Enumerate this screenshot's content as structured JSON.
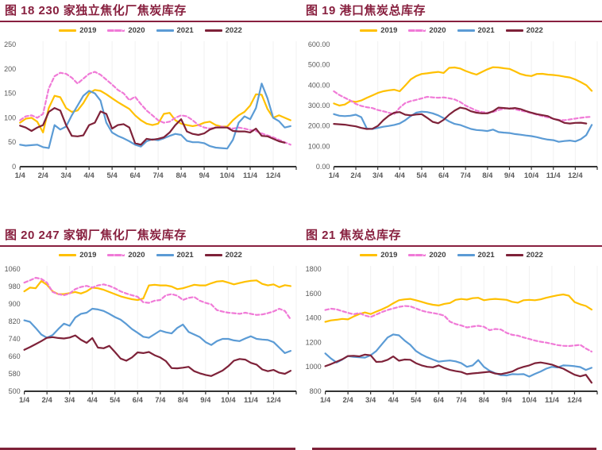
{
  "page": {
    "accent_color": "#88203F",
    "axis_color": "#333333",
    "tick_text_color": "#595959",
    "grid_color": "#F1F1F1",
    "series_colors": {
      "y2019": "#FFC000",
      "y2020": "#F07AD7",
      "y2021": "#5B9BD5",
      "y2022": "#7E2239"
    }
  },
  "chart_data": [
    {
      "id": "fig18",
      "title": "图 18 230 家独立焦化厂焦炭库存",
      "type": "line",
      "x_labels": [
        "1/4",
        "2/4",
        "3/4",
        "4/4",
        "5/4",
        "6/4",
        "7/4",
        "8/4",
        "9/4",
        "10/4",
        "11/4",
        "12/4"
      ],
      "points_per_month": 4,
      "ylim": [
        0,
        250
      ],
      "ytick_step": 50,
      "y_decimals": 0,
      "legend_position": "top",
      "grid": "vertical-faint",
      "series": [
        {
          "name": "2019",
          "color": "#FFC000",
          "dash": false,
          "values": [
            90,
            98,
            100,
            92,
            70,
            120,
            145,
            142,
            120,
            112,
            115,
            130,
            150,
            157,
            155,
            148,
            140,
            132,
            125,
            118,
            105,
            95,
            88,
            85,
            88,
            108,
            110,
            95,
            88,
            85,
            83,
            85,
            90,
            92,
            85,
            82,
            82,
            95,
            105,
            112,
            125,
            148,
            147,
            118,
            100,
            105,
            100,
            95
          ]
        },
        {
          "name": "2020",
          "color": "#F07AD7",
          "dash": true,
          "values": [
            95,
            103,
            105,
            100,
            108,
            160,
            185,
            192,
            190,
            182,
            170,
            180,
            190,
            194,
            188,
            178,
            168,
            157,
            150,
            136,
            143,
            128,
            115,
            105,
            95,
            90,
            92,
            100,
            105,
            103,
            95,
            85,
            80,
            78,
            80,
            82,
            80,
            78,
            80,
            78,
            75,
            73,
            68,
            64,
            60,
            55,
            50,
            45
          ]
        },
        {
          "name": "2021",
          "color": "#5B9BD5",
          "dash": false,
          "values": [
            45,
            43,
            44,
            45,
            40,
            38,
            85,
            76,
            82,
            105,
            125,
            145,
            155,
            150,
            135,
            90,
            70,
            63,
            58,
            52,
            45,
            41,
            52,
            56,
            54,
            58,
            63,
            67,
            65,
            53,
            50,
            50,
            48,
            42,
            39,
            38,
            37,
            55,
            90,
            103,
            97,
            120,
            170,
            140,
            100,
            93,
            80,
            83
          ]
        },
        {
          "name": "2022",
          "color": "#7E2239",
          "dash": false,
          "values": [
            84,
            80,
            73,
            80,
            85,
            112,
            120,
            115,
            85,
            63,
            62,
            64,
            85,
            90,
            113,
            108,
            78,
            85,
            87,
            80,
            48,
            45,
            57,
            55,
            57,
            60,
            70,
            85,
            97,
            72,
            67,
            65,
            68,
            76,
            80,
            80,
            80,
            73,
            72,
            72,
            70,
            78,
            63,
            62,
            57,
            52,
            49
          ]
        }
      ]
    },
    {
      "id": "fig19",
      "title": "图 19 港口焦炭总库存",
      "type": "line",
      "x_labels": [
        "1/4",
        "2/4",
        "3/4",
        "4/4",
        "5/4",
        "6/4",
        "7/4",
        "8/4",
        "9/4",
        "10/4",
        "11/4",
        "12/4"
      ],
      "points_per_month": 4,
      "ylim": [
        0,
        600
      ],
      "ytick_step": 100,
      "y_decimals": 2,
      "legend_position": "top",
      "grid": "vertical-faint",
      "series": [
        {
          "name": "2019",
          "color": "#FFC000",
          "dash": false,
          "values": [
            310,
            300,
            305,
            322,
            318,
            325,
            338,
            350,
            362,
            370,
            375,
            378,
            370,
            398,
            428,
            445,
            455,
            458,
            462,
            465,
            460,
            485,
            487,
            482,
            470,
            460,
            452,
            465,
            478,
            488,
            487,
            483,
            480,
            468,
            455,
            448,
            445,
            455,
            456,
            452,
            450,
            447,
            442,
            438,
            428,
            415,
            400,
            372
          ]
        },
        {
          "name": "2020",
          "color": "#F07AD7",
          "dash": true,
          "values": [
            370,
            352,
            338,
            325,
            308,
            298,
            292,
            288,
            278,
            272,
            265,
            258,
            290,
            312,
            322,
            328,
            335,
            343,
            340,
            338,
            340,
            336,
            330,
            318,
            300,
            287,
            275,
            268,
            265,
            268,
            278,
            285,
            288,
            282,
            275,
            270,
            263,
            255,
            248,
            242,
            235,
            230,
            228,
            232,
            236,
            240,
            243,
            245
          ]
        },
        {
          "name": "2021",
          "color": "#5B9BD5",
          "dash": false,
          "values": [
            258,
            250,
            248,
            250,
            255,
            243,
            187,
            185,
            190,
            196,
            200,
            205,
            212,
            228,
            248,
            265,
            270,
            268,
            262,
            252,
            238,
            222,
            210,
            205,
            195,
            185,
            180,
            178,
            175,
            182,
            170,
            167,
            165,
            160,
            157,
            153,
            150,
            145,
            138,
            133,
            130,
            122,
            126,
            128,
            124,
            135,
            155,
            205
          ]
        },
        {
          "name": "2022",
          "color": "#7E2239",
          "dash": false,
          "values": [
            210,
            208,
            206,
            202,
            198,
            190,
            185,
            186,
            200,
            228,
            250,
            265,
            268,
            255,
            252,
            256,
            258,
            240,
            220,
            213,
            230,
            255,
            275,
            290,
            285,
            272,
            265,
            262,
            262,
            272,
            290,
            288,
            285,
            288,
            283,
            273,
            265,
            258,
            253,
            248,
            235,
            228,
            215,
            212,
            215,
            216,
            212
          ]
        }
      ]
    },
    {
      "id": "fig20",
      "title": "图 20 247 家钢厂焦化厂焦炭库存",
      "type": "line",
      "x_labels": [
        "1/4",
        "2/4",
        "3/4",
        "4/4",
        "5/4",
        "6/4",
        "7/4",
        "8/4",
        "9/4",
        "10/4",
        "11/4",
        "12/4"
      ],
      "points_per_month": 4,
      "ylim": [
        500,
        1060
      ],
      "ytick_step": 80,
      "y_decimals": 0,
      "legend_position": "top",
      "grid": "vertical-faint",
      "series": [
        {
          "name": "2019",
          "color": "#FFC000",
          "dash": false,
          "values": [
            958,
            975,
            972,
            1005,
            988,
            958,
            945,
            945,
            950,
            955,
            948,
            958,
            975,
            972,
            965,
            955,
            945,
            935,
            928,
            922,
            918,
            925,
            985,
            988,
            985,
            985,
            980,
            968,
            972,
            980,
            988,
            985,
            985,
            995,
            1003,
            1005,
            998,
            990,
            996,
            1002,
            1006,
            1008,
            992,
            985,
            990,
            977,
            986,
            982
          ]
        },
        {
          "name": "2020",
          "color": "#F07AD7",
          "dash": true,
          "values": [
            998,
            1008,
            1020,
            1015,
            998,
            955,
            945,
            940,
            948,
            968,
            978,
            983,
            975,
            985,
            990,
            983,
            972,
            958,
            948,
            940,
            933,
            908,
            905,
            915,
            918,
            940,
            945,
            938,
            918,
            928,
            932,
            915,
            905,
            898,
            872,
            865,
            860,
            858,
            855,
            860,
            855,
            850,
            852,
            858,
            866,
            878,
            868,
            830
          ]
        },
        {
          "name": "2021",
          "color": "#5B9BD5",
          "dash": false,
          "values": [
            825,
            818,
            790,
            760,
            745,
            758,
            785,
            810,
            800,
            838,
            855,
            860,
            878,
            875,
            868,
            855,
            840,
            828,
            808,
            785,
            768,
            750,
            745,
            762,
            778,
            770,
            765,
            790,
            806,
            772,
            760,
            748,
            725,
            712,
            730,
            740,
            740,
            733,
            730,
            742,
            752,
            740,
            737,
            735,
            725,
            700,
            675,
            685
          ]
        },
        {
          "name": "2022",
          "color": "#7E2239",
          "dash": false,
          "values": [
            690,
            702,
            716,
            730,
            745,
            748,
            744,
            742,
            746,
            756,
            736,
            722,
            744,
            700,
            697,
            708,
            680,
            650,
            640,
            655,
            678,
            675,
            680,
            665,
            655,
            638,
            606,
            605,
            608,
            612,
            592,
            582,
            575,
            570,
            582,
            595,
            615,
            640,
            648,
            645,
            630,
            622,
            600,
            592,
            598,
            585,
            580,
            594
          ]
        }
      ]
    },
    {
      "id": "fig21",
      "title": "图 21 焦炭总库存",
      "type": "line",
      "x_labels": [
        "1/4",
        "2/4",
        "3/4",
        "4/4",
        "5/4",
        "6/4",
        "7/4",
        "8/4",
        "9/4",
        "10/4",
        "11/4",
        "12/4"
      ],
      "points_per_month": 4,
      "ylim": [
        800,
        1800
      ],
      "ytick_step": 200,
      "y_decimals": 0,
      "legend_position": "top",
      "grid": "vertical-faint",
      "series": [
        {
          "name": "2019",
          "color": "#FFC000",
          "dash": false,
          "values": [
            1368,
            1380,
            1385,
            1392,
            1388,
            1412,
            1432,
            1445,
            1432,
            1452,
            1470,
            1492,
            1520,
            1545,
            1552,
            1556,
            1545,
            1532,
            1518,
            1508,
            1502,
            1515,
            1522,
            1548,
            1555,
            1550,
            1562,
            1565,
            1545,
            1552,
            1556,
            1552,
            1548,
            1532,
            1525,
            1545,
            1548,
            1545,
            1552,
            1565,
            1575,
            1585,
            1592,
            1582,
            1530,
            1512,
            1498,
            1468
          ]
        },
        {
          "name": "2020",
          "color": "#F07AD7",
          "dash": true,
          "values": [
            1465,
            1475,
            1470,
            1455,
            1442,
            1430,
            1440,
            1420,
            1408,
            1428,
            1448,
            1465,
            1478,
            1490,
            1498,
            1495,
            1478,
            1460,
            1448,
            1440,
            1432,
            1418,
            1370,
            1350,
            1338,
            1322,
            1330,
            1336,
            1328,
            1300,
            1310,
            1305,
            1278,
            1262,
            1255,
            1240,
            1228,
            1215,
            1205,
            1198,
            1188,
            1178,
            1172,
            1170,
            1175,
            1180,
            1150,
            1125
          ]
        },
        {
          "name": "2021",
          "color": "#5B9BD5",
          "dash": false,
          "values": [
            1110,
            1068,
            1035,
            1060,
            1088,
            1082,
            1078,
            1075,
            1095,
            1130,
            1185,
            1240,
            1265,
            1258,
            1215,
            1180,
            1130,
            1100,
            1078,
            1060,
            1042,
            1048,
            1052,
            1045,
            1030,
            1000,
            1012,
            1055,
            1000,
            968,
            948,
            932,
            930,
            940,
            938,
            940,
            920,
            942,
            962,
            985,
            1000,
            995,
            1012,
            1010,
            1005,
            998,
            975,
            992
          ]
        },
        {
          "name": "2022",
          "color": "#7E2239",
          "dash": false,
          "values": [
            1005,
            1022,
            1042,
            1062,
            1088,
            1090,
            1086,
            1100,
            1094,
            1040,
            1042,
            1058,
            1085,
            1050,
            1060,
            1058,
            1030,
            1012,
            1000,
            996,
            1012,
            990,
            975,
            965,
            958,
            940,
            946,
            950,
            955,
            960,
            945,
            940,
            950,
            962,
            985,
            1000,
            1012,
            1030,
            1036,
            1028,
            1018,
            1000,
            985,
            960,
            935,
            922,
            935,
            870
          ]
        }
      ]
    }
  ]
}
